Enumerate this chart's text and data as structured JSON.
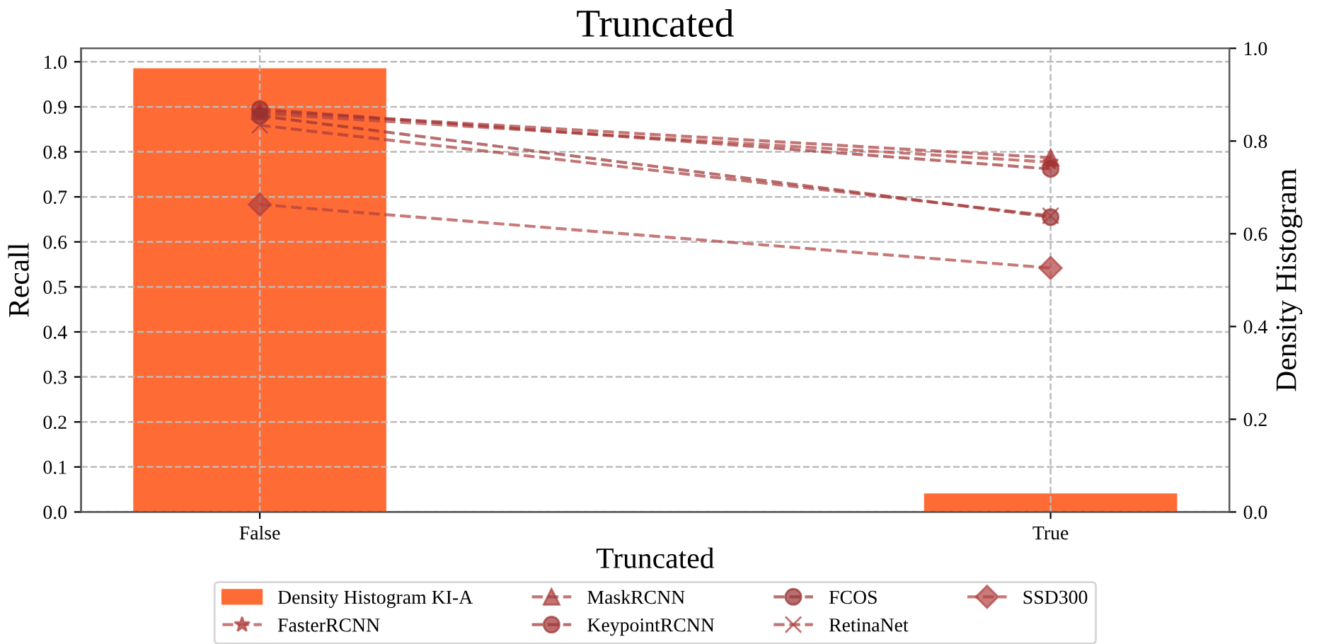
{
  "chart_data": {
    "type": "line",
    "title": "Truncated",
    "xlabel": "Truncated",
    "ylabel": "Recall",
    "y2label": "Density Histogram",
    "categories": [
      "False",
      "True"
    ],
    "series": [
      {
        "name": "Density Histogram KI-A",
        "type": "bar",
        "axis": "y2",
        "color": "#ff6b35",
        "values": [
          0.957,
          0.04
        ]
      },
      {
        "name": "FasterRCNN",
        "color": "#b04040",
        "marker": "star",
        "values": [
          0.885,
          0.777
        ]
      },
      {
        "name": "MaskRCNN",
        "color": "#a83a3a",
        "marker": "triangle",
        "values": [
          0.89,
          0.787
        ]
      },
      {
        "name": "KeypointRCNN",
        "color": "#a03030",
        "marker": "circle",
        "values": [
          0.895,
          0.762
        ]
      },
      {
        "name": "FCOS",
        "color": "#983030",
        "marker": "circle",
        "values": [
          0.88,
          0.655
        ]
      },
      {
        "name": "RetinaNet",
        "color": "#a83a3a",
        "marker": "cross",
        "values": [
          0.859,
          0.658
        ]
      },
      {
        "name": "SSD300",
        "color": "#b04040",
        "marker": "diamond",
        "values": [
          0.683,
          0.542
        ]
      }
    ],
    "line_style": "dashed",
    "ylim": [
      0,
      1.03
    ],
    "yticks": [
      {
        "value": 0,
        "label": "0.0"
      },
      0.1,
      0.2,
      0.3,
      0.4,
      0.5,
      0.6,
      0.7,
      0.8,
      0.9,
      {
        "value": 1,
        "label": "1.0"
      }
    ],
    "y2lim": [
      0,
      1.0
    ],
    "y2ticks": [
      {
        "value": 0,
        "label": "0.0"
      },
      0.2,
      0.4,
      0.6,
      0.8,
      {
        "value": 1,
        "label": "1.0"
      }
    ],
    "grid": true,
    "legend": "bottom"
  }
}
